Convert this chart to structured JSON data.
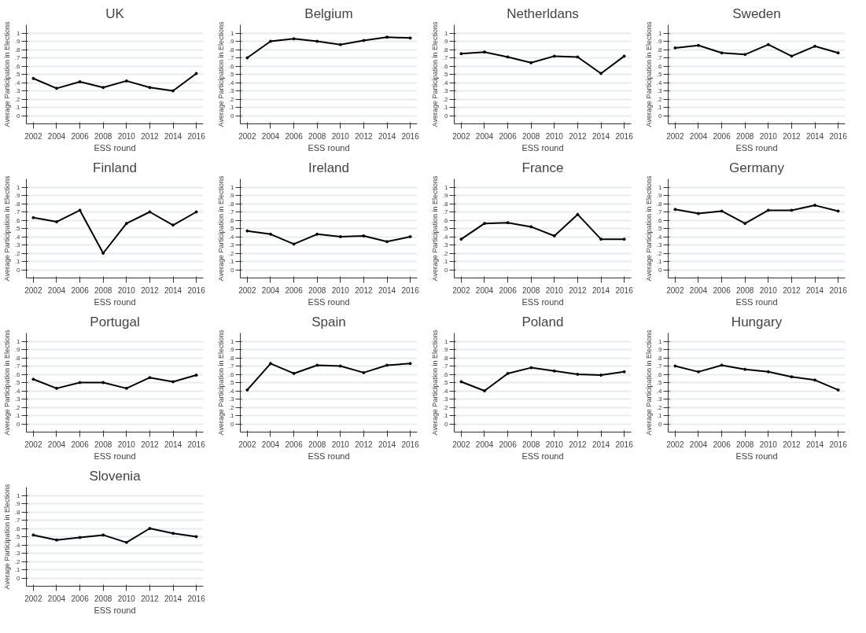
{
  "chart_data": [
    {
      "type": "line",
      "title": "UK",
      "xlabel": "ESS round",
      "ylabel": "Average Participation in Elections",
      "x": [
        2002,
        2004,
        2006,
        2008,
        2010,
        2012,
        2014,
        2016
      ],
      "xlim": [
        2001.4,
        2016.6
      ],
      "xticks": [
        2002,
        2004,
        2006,
        2008,
        2010,
        2012,
        2014,
        2016
      ],
      "ylim": [
        -0.1,
        1.1
      ],
      "yticks": [
        0,
        {
          "value": 0.1,
          "label": ".1"
        },
        {
          "value": 0.2,
          "label": ".2"
        },
        {
          "value": 0.3,
          "label": ".3"
        },
        {
          "value": 0.4,
          "label": ".4"
        },
        {
          "value": 0.5,
          "label": ".5"
        },
        {
          "value": 0.6,
          "label": ".6"
        },
        {
          "value": 0.7,
          "label": ".7"
        },
        {
          "value": 0.8,
          "label": ".8"
        },
        {
          "value": 0.9,
          "label": ".9"
        },
        1
      ],
      "grid": "y",
      "marker": "circle",
      "series": [
        {
          "color": "#000000",
          "values": [
            0.45,
            0.33,
            0.41,
            0.34,
            0.42,
            0.34,
            0.3,
            0.51
          ]
        }
      ]
    },
    {
      "type": "line",
      "title": "Belgium",
      "xlabel": "ESS round",
      "ylabel": "Average Participation in Elections",
      "x": [
        2002,
        2004,
        2006,
        2008,
        2010,
        2012,
        2014,
        2016
      ],
      "xlim": [
        2001.4,
        2016.6
      ],
      "xticks": [
        2002,
        2004,
        2006,
        2008,
        2010,
        2012,
        2014,
        2016
      ],
      "ylim": [
        -0.1,
        1.1
      ],
      "yticks": [
        0,
        {
          "value": 0.1,
          "label": ".1"
        },
        {
          "value": 0.2,
          "label": ".2"
        },
        {
          "value": 0.3,
          "label": ".3"
        },
        {
          "value": 0.4,
          "label": ".4"
        },
        {
          "value": 0.5,
          "label": ".5"
        },
        {
          "value": 0.6,
          "label": ".6"
        },
        {
          "value": 0.7,
          "label": ".7"
        },
        {
          "value": 0.8,
          "label": ".8"
        },
        {
          "value": 0.9,
          "label": ".9"
        },
        1
      ],
      "grid": "y",
      "marker": "circle",
      "series": [
        {
          "color": "#000000",
          "values": [
            0.7,
            0.9,
            0.93,
            0.9,
            0.86,
            0.91,
            0.95,
            0.94
          ]
        }
      ]
    },
    {
      "type": "line",
      "title": "Netherldans",
      "xlabel": "ESS round",
      "ylabel": "Average Participation in Elections",
      "x": [
        2002,
        2004,
        2006,
        2008,
        2010,
        2012,
        2014,
        2016
      ],
      "xlim": [
        2001.4,
        2016.6
      ],
      "xticks": [
        2002,
        2004,
        2006,
        2008,
        2010,
        2012,
        2014,
        2016
      ],
      "ylim": [
        -0.1,
        1.1
      ],
      "yticks": [
        0,
        {
          "value": 0.1,
          "label": ".1"
        },
        {
          "value": 0.2,
          "label": ".2"
        },
        {
          "value": 0.3,
          "label": ".3"
        },
        {
          "value": 0.4,
          "label": ".4"
        },
        {
          "value": 0.5,
          "label": ".5"
        },
        {
          "value": 0.6,
          "label": ".6"
        },
        {
          "value": 0.7,
          "label": ".7"
        },
        {
          "value": 0.8,
          "label": ".8"
        },
        {
          "value": 0.9,
          "label": ".9"
        },
        1
      ],
      "grid": "y",
      "marker": "circle",
      "series": [
        {
          "color": "#000000",
          "values": [
            0.75,
            0.77,
            0.71,
            0.64,
            0.72,
            0.71,
            0.51,
            0.72
          ]
        }
      ]
    },
    {
      "type": "line",
      "title": "Sweden",
      "xlabel": "ESS round",
      "ylabel": "Average Participation in Elections",
      "x": [
        2002,
        2004,
        2006,
        2008,
        2010,
        2012,
        2014,
        2016
      ],
      "xlim": [
        2001.4,
        2016.6
      ],
      "xticks": [
        2002,
        2004,
        2006,
        2008,
        2010,
        2012,
        2014,
        2016
      ],
      "ylim": [
        -0.1,
        1.1
      ],
      "yticks": [
        0,
        {
          "value": 0.1,
          "label": ".1"
        },
        {
          "value": 0.2,
          "label": ".2"
        },
        {
          "value": 0.3,
          "label": ".3"
        },
        {
          "value": 0.4,
          "label": ".4"
        },
        {
          "value": 0.5,
          "label": ".5"
        },
        {
          "value": 0.6,
          "label": ".6"
        },
        {
          "value": 0.7,
          "label": ".7"
        },
        {
          "value": 0.8,
          "label": ".8"
        },
        {
          "value": 0.9,
          "label": ".9"
        },
        1
      ],
      "grid": "y",
      "marker": "circle",
      "series": [
        {
          "color": "#000000",
          "values": [
            0.82,
            0.85,
            0.76,
            0.74,
            0.86,
            0.72,
            0.84,
            0.76
          ]
        }
      ]
    },
    {
      "type": "line",
      "title": "Finland",
      "xlabel": "ESS round",
      "ylabel": "Average Participation in Elections",
      "x": [
        2002,
        2004,
        2006,
        2008,
        2010,
        2012,
        2014,
        2016
      ],
      "xlim": [
        2001.4,
        2016.6
      ],
      "xticks": [
        2002,
        2004,
        2006,
        2008,
        2010,
        2012,
        2014,
        2016
      ],
      "ylim": [
        -0.1,
        1.1
      ],
      "yticks": [
        0,
        {
          "value": 0.1,
          "label": ".1"
        },
        {
          "value": 0.2,
          "label": ".2"
        },
        {
          "value": 0.3,
          "label": ".3"
        },
        {
          "value": 0.4,
          "label": ".4"
        },
        {
          "value": 0.5,
          "label": ".5"
        },
        {
          "value": 0.6,
          "label": ".6"
        },
        {
          "value": 0.7,
          "label": ".7"
        },
        {
          "value": 0.8,
          "label": ".8"
        },
        {
          "value": 0.9,
          "label": ".9"
        },
        1
      ],
      "grid": "y",
      "marker": "circle",
      "series": [
        {
          "color": "#000000",
          "values": [
            0.63,
            0.58,
            0.72,
            0.2,
            0.56,
            0.7,
            0.54,
            0.7
          ]
        }
      ]
    },
    {
      "type": "line",
      "title": "Ireland",
      "xlabel": "ESS round",
      "ylabel": "Average Participation in Elections",
      "x": [
        2002,
        2004,
        2006,
        2008,
        2010,
        2012,
        2014,
        2016
      ],
      "xlim": [
        2001.4,
        2016.6
      ],
      "xticks": [
        2002,
        2004,
        2006,
        2008,
        2010,
        2012,
        2014,
        2016
      ],
      "ylim": [
        -0.1,
        1.1
      ],
      "yticks": [
        0,
        {
          "value": 0.1,
          "label": ".1"
        },
        {
          "value": 0.2,
          "label": ".2"
        },
        {
          "value": 0.3,
          "label": ".3"
        },
        {
          "value": 0.4,
          "label": ".4"
        },
        {
          "value": 0.5,
          "label": ".5"
        },
        {
          "value": 0.6,
          "label": ".6"
        },
        {
          "value": 0.7,
          "label": ".7"
        },
        {
          "value": 0.8,
          "label": ".8"
        },
        {
          "value": 0.9,
          "label": ".9"
        },
        1
      ],
      "grid": "y",
      "marker": "circle",
      "series": [
        {
          "color": "#000000",
          "values": [
            0.47,
            0.43,
            0.31,
            0.43,
            0.4,
            0.41,
            0.34,
            0.4
          ]
        }
      ]
    },
    {
      "type": "line",
      "title": "France",
      "xlabel": "ESS round",
      "ylabel": "Average Participation in Elections",
      "x": [
        2002,
        2004,
        2006,
        2008,
        2010,
        2012,
        2014,
        2016
      ],
      "xlim": [
        2001.4,
        2016.6
      ],
      "xticks": [
        2002,
        2004,
        2006,
        2008,
        2010,
        2012,
        2014,
        2016
      ],
      "ylim": [
        -0.1,
        1.1
      ],
      "yticks": [
        0,
        {
          "value": 0.1,
          "label": ".1"
        },
        {
          "value": 0.2,
          "label": ".2"
        },
        {
          "value": 0.3,
          "label": ".3"
        },
        {
          "value": 0.4,
          "label": ".4"
        },
        {
          "value": 0.5,
          "label": ".5"
        },
        {
          "value": 0.6,
          "label": ".6"
        },
        {
          "value": 0.7,
          "label": ".7"
        },
        {
          "value": 0.8,
          "label": ".8"
        },
        {
          "value": 0.9,
          "label": ".9"
        },
        1
      ],
      "grid": "y",
      "marker": "circle",
      "series": [
        {
          "color": "#000000",
          "values": [
            0.37,
            0.56,
            0.57,
            0.52,
            0.41,
            0.67,
            0.37,
            0.37
          ]
        }
      ]
    },
    {
      "type": "line",
      "title": "Germany",
      "xlabel": "ESS round",
      "ylabel": "Average Participation in Elections",
      "x": [
        2002,
        2004,
        2006,
        2008,
        2010,
        2012,
        2014,
        2016
      ],
      "xlim": [
        2001.4,
        2016.6
      ],
      "xticks": [
        2002,
        2004,
        2006,
        2008,
        2010,
        2012,
        2014,
        2016
      ],
      "ylim": [
        -0.1,
        1.1
      ],
      "yticks": [
        0,
        {
          "value": 0.1,
          "label": ".1"
        },
        {
          "value": 0.2,
          "label": ".2"
        },
        {
          "value": 0.3,
          "label": ".3"
        },
        {
          "value": 0.4,
          "label": ".4"
        },
        {
          "value": 0.5,
          "label": ".5"
        },
        {
          "value": 0.6,
          "label": ".6"
        },
        {
          "value": 0.7,
          "label": ".7"
        },
        {
          "value": 0.8,
          "label": ".8"
        },
        {
          "value": 0.9,
          "label": ".9"
        },
        1
      ],
      "grid": "y",
      "marker": "circle",
      "series": [
        {
          "color": "#000000",
          "values": [
            0.73,
            0.68,
            0.71,
            0.56,
            0.72,
            0.72,
            0.78,
            0.71
          ]
        }
      ]
    },
    {
      "type": "line",
      "title": "Portugal",
      "xlabel": "ESS round",
      "ylabel": "Average Participation in Elections",
      "x": [
        2002,
        2004,
        2006,
        2008,
        2010,
        2012,
        2014,
        2016
      ],
      "xlim": [
        2001.4,
        2016.6
      ],
      "xticks": [
        2002,
        2004,
        2006,
        2008,
        2010,
        2012,
        2014,
        2016
      ],
      "ylim": [
        -0.1,
        1.1
      ],
      "yticks": [
        0,
        {
          "value": 0.1,
          "label": ".1"
        },
        {
          "value": 0.2,
          "label": ".2"
        },
        {
          "value": 0.3,
          "label": ".3"
        },
        {
          "value": 0.4,
          "label": ".4"
        },
        {
          "value": 0.5,
          "label": ".5"
        },
        {
          "value": 0.6,
          "label": ".6"
        },
        {
          "value": 0.7,
          "label": ".7"
        },
        {
          "value": 0.8,
          "label": ".8"
        },
        {
          "value": 0.9,
          "label": ".9"
        },
        1
      ],
      "grid": "y",
      "marker": "circle",
      "series": [
        {
          "color": "#000000",
          "values": [
            0.54,
            0.43,
            0.5,
            0.5,
            0.43,
            0.56,
            0.51,
            0.59
          ]
        }
      ]
    },
    {
      "type": "line",
      "title": "Spain",
      "xlabel": "ESS round",
      "ylabel": "Average Participation in Elections",
      "x": [
        2002,
        2004,
        2006,
        2008,
        2010,
        2012,
        2014,
        2016
      ],
      "xlim": [
        2001.4,
        2016.6
      ],
      "xticks": [
        2002,
        2004,
        2006,
        2008,
        2010,
        2012,
        2014,
        2016
      ],
      "ylim": [
        -0.1,
        1.1
      ],
      "yticks": [
        0,
        {
          "value": 0.1,
          "label": ".1"
        },
        {
          "value": 0.2,
          "label": ".2"
        },
        {
          "value": 0.3,
          "label": ".3"
        },
        {
          "value": 0.4,
          "label": ".4"
        },
        {
          "value": 0.5,
          "label": ".5"
        },
        {
          "value": 0.6,
          "label": ".6"
        },
        {
          "value": 0.7,
          "label": ".7"
        },
        {
          "value": 0.8,
          "label": ".8"
        },
        {
          "value": 0.9,
          "label": ".9"
        },
        1
      ],
      "grid": "y",
      "marker": "circle",
      "series": [
        {
          "color": "#000000",
          "values": [
            0.41,
            0.73,
            0.61,
            0.71,
            0.7,
            0.62,
            0.71,
            0.73
          ]
        }
      ]
    },
    {
      "type": "line",
      "title": "Poland",
      "xlabel": "ESS round",
      "ylabel": "Average Participation in Elections",
      "x": [
        2002,
        2004,
        2006,
        2008,
        2010,
        2012,
        2014,
        2016
      ],
      "xlim": [
        2001.4,
        2016.6
      ],
      "xticks": [
        2002,
        2004,
        2006,
        2008,
        2010,
        2012,
        2014,
        2016
      ],
      "ylim": [
        -0.1,
        1.1
      ],
      "yticks": [
        0,
        {
          "value": 0.1,
          "label": ".1"
        },
        {
          "value": 0.2,
          "label": ".2"
        },
        {
          "value": 0.3,
          "label": ".3"
        },
        {
          "value": 0.4,
          "label": ".4"
        },
        {
          "value": 0.5,
          "label": ".5"
        },
        {
          "value": 0.6,
          "label": ".6"
        },
        {
          "value": 0.7,
          "label": ".7"
        },
        {
          "value": 0.8,
          "label": ".8"
        },
        {
          "value": 0.9,
          "label": ".9"
        },
        1
      ],
      "grid": "y",
      "marker": "circle",
      "series": [
        {
          "color": "#000000",
          "values": [
            0.51,
            0.4,
            0.61,
            0.68,
            0.64,
            0.6,
            0.59,
            0.63
          ]
        }
      ]
    },
    {
      "type": "line",
      "title": "Hungary",
      "xlabel": "ESS round",
      "ylabel": "Average Participation in Elections",
      "x": [
        2002,
        2004,
        2006,
        2008,
        2010,
        2012,
        2014,
        2016
      ],
      "xlim": [
        2001.4,
        2016.6
      ],
      "xticks": [
        2002,
        2004,
        2006,
        2008,
        2010,
        2012,
        2014,
        2016
      ],
      "ylim": [
        -0.1,
        1.1
      ],
      "yticks": [
        0,
        {
          "value": 0.1,
          "label": ".1"
        },
        {
          "value": 0.2,
          "label": ".2"
        },
        {
          "value": 0.3,
          "label": ".3"
        },
        {
          "value": 0.4,
          "label": ".4"
        },
        {
          "value": 0.5,
          "label": ".5"
        },
        {
          "value": 0.6,
          "label": ".6"
        },
        {
          "value": 0.7,
          "label": ".7"
        },
        {
          "value": 0.8,
          "label": ".8"
        },
        {
          "value": 0.9,
          "label": ".9"
        },
        1
      ],
      "grid": "y",
      "marker": "circle",
      "series": [
        {
          "color": "#000000",
          "values": [
            0.7,
            0.63,
            0.71,
            0.66,
            0.63,
            0.57,
            0.53,
            0.41
          ]
        }
      ]
    },
    {
      "type": "line",
      "title": "Slovenia",
      "xlabel": "ESS round",
      "ylabel": "Average Participation in Elections",
      "x": [
        2002,
        2004,
        2006,
        2008,
        2010,
        2012,
        2014,
        2016
      ],
      "xlim": [
        2001.4,
        2016.6
      ],
      "xticks": [
        2002,
        2004,
        2006,
        2008,
        2010,
        2012,
        2014,
        2016
      ],
      "ylim": [
        -0.1,
        1.1
      ],
      "yticks": [
        0,
        {
          "value": 0.1,
          "label": ".1"
        },
        {
          "value": 0.2,
          "label": ".2"
        },
        {
          "value": 0.3,
          "label": ".3"
        },
        {
          "value": 0.4,
          "label": ".4"
        },
        {
          "value": 0.5,
          "label": ".5"
        },
        {
          "value": 0.6,
          "label": ".6"
        },
        {
          "value": 0.7,
          "label": ".7"
        },
        {
          "value": 0.8,
          "label": ".8"
        },
        {
          "value": 0.9,
          "label": ".9"
        },
        1
      ],
      "grid": "y",
      "marker": "circle",
      "series": [
        {
          "color": "#000000",
          "values": [
            0.52,
            0.46,
            0.49,
            0.52,
            0.43,
            0.6,
            0.54,
            0.5
          ]
        }
      ]
    }
  ]
}
